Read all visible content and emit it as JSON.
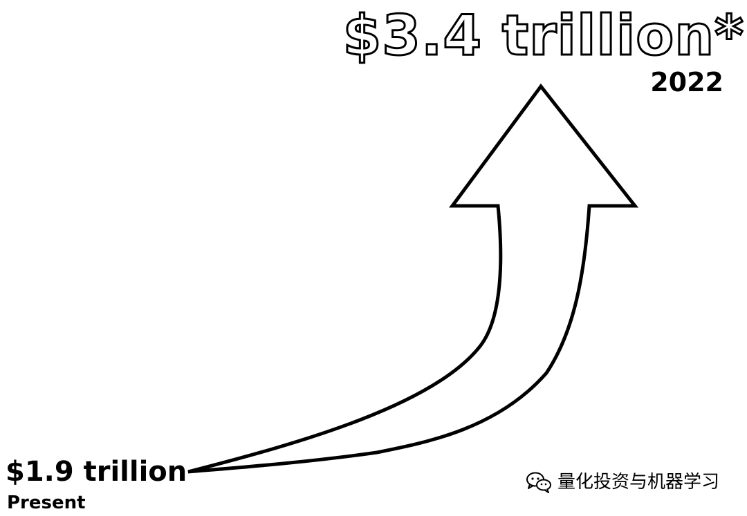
{
  "figure": {
    "end_value": "$3.4 trillion*",
    "end_label": "2022",
    "start_value": "$1.9 trillion",
    "start_label": "Present"
  },
  "watermark": {
    "icon": "wechat-icon",
    "text": "量化投资与机器学习"
  },
  "colors": {
    "stroke": "#000000",
    "background": "#ffffff"
  }
}
